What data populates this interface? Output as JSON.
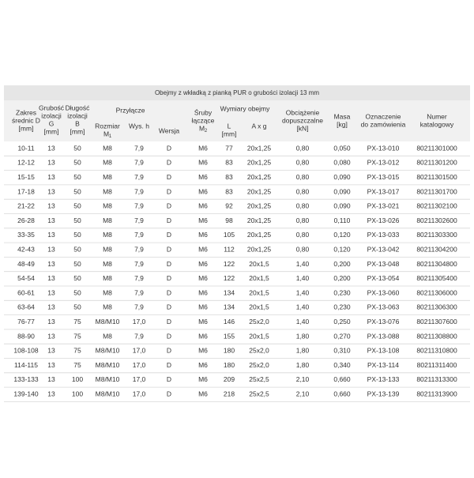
{
  "header": {
    "title": "Obejmy z wkładką z pianką PUR o grubości izolacji 13 mm",
    "cells": [
      {
        "lines": [
          "Zakres",
          "średnic D",
          "[mm]"
        ]
      },
      {
        "lines": [
          "Grubość",
          "izolacji",
          "G",
          "[mm]"
        ]
      },
      {
        "lines": [
          "Długość",
          "izolacji",
          "B",
          "[mm]"
        ]
      },
      {
        "lines": [
          "Przyłącze"
        ]
      },
      {
        "lines": [
          "Rozmiar",
          {
            "text": "M",
            "sub": "1"
          }
        ]
      },
      {
        "lines": [
          "Wys. h"
        ]
      },
      {
        "lines": [
          "Wersja"
        ]
      },
      {
        "lines": [
          "Śruby",
          "łączące",
          {
            "text": "M",
            "sub": "2"
          }
        ]
      },
      {
        "lines": [
          "Wymiary obejmy"
        ]
      },
      {
        "lines": [
          "L",
          "[mm]"
        ]
      },
      {
        "lines": [
          "A x g"
        ]
      },
      {
        "lines": [
          "Obciążenie",
          "dopuszczalne",
          "[kN]"
        ]
      },
      {
        "lines": [
          "Masa",
          "[kg]"
        ]
      },
      {
        "lines": [
          "Oznaczenie",
          "do zamówienia"
        ]
      },
      {
        "lines": [
          "Numer",
          "katalogowy"
        ]
      }
    ]
  },
  "table": {
    "rows": [
      [
        "10-11",
        "13",
        "50",
        "M8",
        "7,9",
        "D",
        "M6",
        "77",
        "20x1,25",
        "0,80",
        "0,050",
        "PX-13-010",
        "80211301000"
      ],
      [
        "12-12",
        "13",
        "50",
        "M8",
        "7,9",
        "D",
        "M6",
        "83",
        "20x1,25",
        "0,80",
        "0,080",
        "PX-13-012",
        "80211301200"
      ],
      [
        "15-15",
        "13",
        "50",
        "M8",
        "7,9",
        "D",
        "M6",
        "83",
        "20x1,25",
        "0,80",
        "0,090",
        "PX-13-015",
        "80211301500"
      ],
      [
        "17-18",
        "13",
        "50",
        "M8",
        "7,9",
        "D",
        "M6",
        "83",
        "20x1,25",
        "0,80",
        "0,090",
        "PX-13-017",
        "80211301700"
      ],
      [
        "21-22",
        "13",
        "50",
        "M8",
        "7,9",
        "D",
        "M6",
        "92",
        "20x1,25",
        "0,80",
        "0,090",
        "PX-13-021",
        "80211302100"
      ],
      [
        "26-28",
        "13",
        "50",
        "M8",
        "7,9",
        "D",
        "M6",
        "98",
        "20x1,25",
        "0,80",
        "0,110",
        "PX-13-026",
        "80211302600"
      ],
      [
        "33-35",
        "13",
        "50",
        "M8",
        "7,9",
        "D",
        "M6",
        "105",
        "20x1,25",
        "0,80",
        "0,120",
        "PX-13-033",
        "80211303300"
      ],
      [
        "42-43",
        "13",
        "50",
        "M8",
        "7,9",
        "D",
        "M6",
        "112",
        "20x1,25",
        "0,80",
        "0,120",
        "PX-13-042",
        "80211304200"
      ],
      [
        "48-49",
        "13",
        "50",
        "M8",
        "7,9",
        "D",
        "M6",
        "122",
        "20x1,5",
        "1,40",
        "0,200",
        "PX-13-048",
        "80211304800"
      ],
      [
        "54-54",
        "13",
        "50",
        "M8",
        "7,9",
        "D",
        "M6",
        "122",
        "20x1,5",
        "1,40",
        "0,200",
        "PX-13-054",
        "80211305400"
      ],
      [
        "60-61",
        "13",
        "50",
        "M8",
        "7,9",
        "D",
        "M6",
        "134",
        "20x1,5",
        "1,40",
        "0,230",
        "PX-13-060",
        "80211306000"
      ],
      [
        "63-64",
        "13",
        "50",
        "M8",
        "7,9",
        "D",
        "M6",
        "134",
        "20x1,5",
        "1,40",
        "0,230",
        "PX-13-063",
        "80211306300"
      ],
      [
        "76-77",
        "13",
        "75",
        "M8/M10",
        "17,0",
        "D",
        "M6",
        "146",
        "25x2,0",
        "1,40",
        "0,250",
        "PX-13-076",
        "80211307600"
      ],
      [
        "88-90",
        "13",
        "75",
        "M8",
        "7,9",
        "D",
        "M6",
        "155",
        "20x1,5",
        "1,80",
        "0,270",
        "PX-13-088",
        "80211308800"
      ],
      [
        "108-108",
        "13",
        "75",
        "M8/M10",
        "17,0",
        "D",
        "M6",
        "180",
        "25x2,0",
        "1,80",
        "0,310",
        "PX-13-108",
        "80211310800"
      ],
      [
        "114-115",
        "13",
        "75",
        "M8/M10",
        "17,0",
        "D",
        "M6",
        "180",
        "25x2,0",
        "1,80",
        "0,340",
        "PX-13-114",
        "80211311400"
      ],
      [
        "133-133",
        "13",
        "100",
        "M8/M10",
        "17,0",
        "D",
        "M6",
        "209",
        "25x2,5",
        "2,10",
        "0,660",
        "PX-13-133",
        "80211313300"
      ],
      [
        "139-140",
        "13",
        "100",
        "M8/M10",
        "17,0",
        "D",
        "M6",
        "218",
        "25x2,5",
        "2,10",
        "0,660",
        "PX-13-139",
        "80211313900"
      ]
    ]
  }
}
